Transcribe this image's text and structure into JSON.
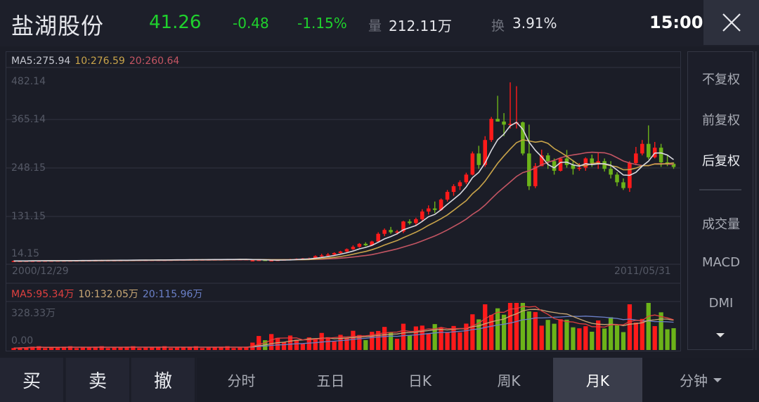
{
  "header": {
    "stock_name": "盐湖股份",
    "price": "41.26",
    "change": "-0.48",
    "change_pct": "-1.15%",
    "volume_label": "量",
    "volume_value": "212.11万",
    "turnover_label": "换",
    "turnover_value": "3.91%",
    "time": "15:00",
    "close_icon": "close-icon"
  },
  "colors": {
    "up": "#ff1a1a",
    "down": "#6cb319",
    "ma5": "#d9d9e0",
    "ma10": "#c9a44a",
    "ma20": "#c45563",
    "vma5": "#e0403f",
    "vma10": "#c9a875",
    "vma20": "#6b80c8",
    "price_green": "#1fd12d"
  },
  "price_chart": {
    "ma_legend": {
      "ma5": "MA5:275.94",
      "ma10": "10:276.59",
      "ma20": "20:260.64"
    },
    "y_labels": [
      "482.14",
      "365.14",
      "248.15",
      "131.15",
      "14.15"
    ],
    "start_date": "2000/12/29",
    "end_date": "2011/05/31"
  },
  "volume_chart": {
    "ma_legend": {
      "ma5": "MA5:95.34万",
      "ma10": "10:132.05万",
      "ma20": "20:115.96万"
    },
    "y_labels": [
      "328.33万",
      "0.00"
    ]
  },
  "side_menu": {
    "items": [
      "不复权",
      "前复权",
      "后复权",
      "成交量",
      "MACD",
      "DMI"
    ],
    "active": "后复权",
    "more_icon": "caret-down-icon"
  },
  "bottom_bar": {
    "trade_buttons": [
      "买",
      "卖",
      "撤"
    ],
    "periods": [
      "分时",
      "五日",
      "日K",
      "周K",
      "月K",
      "分钟"
    ],
    "active_period": "月K"
  },
  "chart_data": {
    "type": "candlestick",
    "title": "盐湖股份 月K (后复权)",
    "x_range": [
      "2000/12/29",
      "2011/05/31"
    ],
    "y_ticks": [
      482.14,
      365.14,
      248.15,
      131.15,
      14.15
    ],
    "ylim": [
      14.15,
      482.14
    ],
    "candles_ohlc_approx": [
      [
        16,
        18,
        15,
        17
      ],
      [
        17,
        19,
        16,
        18
      ],
      [
        18,
        20,
        17,
        17
      ],
      [
        17,
        18,
        16,
        17
      ],
      [
        17,
        19,
        16,
        18
      ],
      [
        18,
        20,
        17,
        19
      ],
      [
        19,
        21,
        18,
        20
      ],
      [
        20,
        22,
        19,
        21
      ],
      [
        21,
        23,
        20,
        22
      ],
      [
        22,
        24,
        21,
        22
      ],
      [
        22,
        30,
        21,
        28
      ],
      [
        28,
        34,
        26,
        30
      ],
      [
        30,
        36,
        28,
        32
      ],
      [
        32,
        38,
        30,
        36
      ],
      [
        36,
        42,
        34,
        40
      ],
      [
        40,
        48,
        38,
        46
      ],
      [
        46,
        56,
        44,
        52
      ],
      [
        52,
        62,
        50,
        60
      ],
      [
        60,
        64,
        54,
        56
      ],
      [
        56,
        68,
        54,
        66
      ],
      [
        66,
        90,
        64,
        86
      ],
      [
        86,
        100,
        80,
        96
      ],
      [
        96,
        104,
        86,
        90
      ],
      [
        90,
        96,
        84,
        92
      ],
      [
        92,
        120,
        88,
        118
      ],
      [
        118,
        124,
        110,
        114
      ],
      [
        114,
        128,
        108,
        124
      ],
      [
        124,
        150,
        118,
        144
      ],
      [
        144,
        160,
        136,
        152
      ],
      [
        152,
        170,
        140,
        148
      ],
      [
        148,
        178,
        146,
        175
      ],
      [
        175,
        200,
        170,
        195
      ],
      [
        195,
        215,
        185,
        210
      ],
      [
        210,
        225,
        200,
        220
      ],
      [
        220,
        245,
        215,
        240
      ],
      [
        240,
        300,
        238,
        295
      ],
      [
        295,
        315,
        255,
        265
      ],
      [
        265,
        340,
        260,
        330
      ],
      [
        330,
        390,
        325,
        385
      ],
      [
        385,
        445,
        380,
        378
      ],
      [
        378,
        400,
        340,
        370
      ],
      [
        370,
        480,
        360,
        372
      ],
      [
        372,
        470,
        360,
        376
      ],
      [
        376,
        378,
        290,
        295
      ],
      [
        295,
        370,
        200,
        210
      ],
      [
        210,
        270,
        205,
        262
      ],
      [
        262,
        305,
        262,
        290
      ],
      [
        290,
        296,
        255,
        275
      ],
      [
        275,
        282,
        240,
        250
      ],
      [
        250,
        285,
        248,
        282
      ],
      [
        282,
        304,
        258,
        265
      ],
      [
        265,
        278,
        240,
        255
      ],
      [
        255,
        270,
        250,
        258
      ],
      [
        258,
        285,
        250,
        282
      ],
      [
        282,
        292,
        260,
        270
      ],
      [
        270,
        298,
        255,
        275
      ],
      [
        275,
        282,
        248,
        255
      ],
      [
        255,
        275,
        230,
        240
      ],
      [
        240,
        246,
        210,
        220
      ],
      [
        220,
        230,
        200,
        205
      ],
      [
        205,
        275,
        195,
        270
      ],
      [
        270,
        312,
        265,
        295
      ],
      [
        295,
        330,
        290,
        320
      ],
      [
        320,
        368,
        280,
        285
      ],
      [
        285,
        325,
        282,
        310
      ],
      [
        310,
        320,
        260,
        272
      ],
      [
        272,
        292,
        262,
        268
      ],
      [
        268,
        272,
        255,
        260
      ]
    ],
    "volume_ylim": [
      0,
      328.33
    ],
    "volume_unit": "万"
  }
}
